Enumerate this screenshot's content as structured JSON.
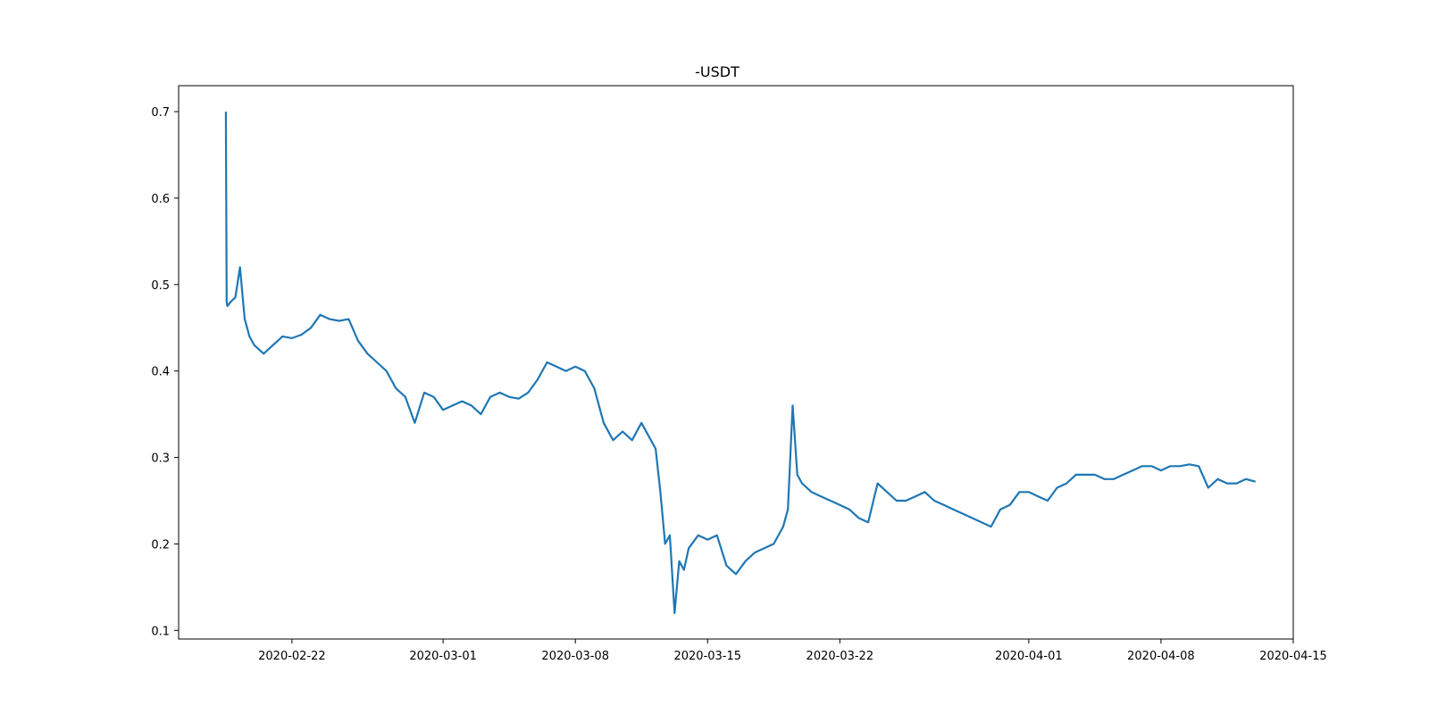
{
  "chart_data": {
    "type": "line",
    "title": "-USDT",
    "xlabel": "",
    "ylabel": "",
    "x_type": "date",
    "xlim": [
      "2020-02-16",
      "2020-04-15"
    ],
    "ylim": [
      0.09,
      0.73
    ],
    "x_ticks": [
      "2020-02-22",
      "2020-03-01",
      "2020-03-08",
      "2020-03-15",
      "2020-03-22",
      "2020-04-01",
      "2020-04-08",
      "2020-04-15"
    ],
    "y_ticks": [
      0.1,
      0.2,
      0.3,
      0.4,
      0.5,
      0.6,
      0.7
    ],
    "y_tick_labels": [
      "0.1",
      "0.2",
      "0.3",
      "0.4",
      "0.5",
      "0.6",
      "0.7"
    ],
    "grid": false,
    "line_color": "#1f77b4",
    "series": [
      {
        "x": [
          "2020-02-18 12:00",
          "2020-02-18 13:00",
          "2020-02-18 14:00",
          "2020-02-18 18:00",
          "2020-02-19 00:00",
          "2020-02-19 06:00",
          "2020-02-19 12:00",
          "2020-02-19 15:00",
          "2020-02-19 18:00",
          "2020-02-20 00:00",
          "2020-02-20 12:00",
          "2020-02-21 00:00",
          "2020-02-21 12:00",
          "2020-02-22 00:00",
          "2020-02-22 12:00",
          "2020-02-23 00:00",
          "2020-02-23 12:00",
          "2020-02-24 00:00",
          "2020-02-24 12:00",
          "2020-02-25 00:00",
          "2020-02-25 12:00",
          "2020-02-26 00:00",
          "2020-02-26 12:00",
          "2020-02-27 00:00",
          "2020-02-27 12:00",
          "2020-02-28 00:00",
          "2020-02-28 12:00",
          "2020-02-29 00:00",
          "2020-02-29 12:00",
          "2020-03-01 00:00",
          "2020-03-01 12:00",
          "2020-03-02 00:00",
          "2020-03-02 12:00",
          "2020-03-03 00:00",
          "2020-03-03 12:00",
          "2020-03-04 00:00",
          "2020-03-04 12:00",
          "2020-03-05 00:00",
          "2020-03-05 12:00",
          "2020-03-06 00:00",
          "2020-03-06 12:00",
          "2020-03-07 00:00",
          "2020-03-07 12:00",
          "2020-03-08 00:00",
          "2020-03-08 12:00",
          "2020-03-09 00:00",
          "2020-03-09 12:00",
          "2020-03-10 00:00",
          "2020-03-10 12:00",
          "2020-03-11 00:00",
          "2020-03-11 12:00",
          "2020-03-12 00:00",
          "2020-03-12 06:00",
          "2020-03-12 12:00",
          "2020-03-12 18:00",
          "2020-03-13 00:00",
          "2020-03-13 06:00",
          "2020-03-13 12:00",
          "2020-03-13 18:00",
          "2020-03-14 00:00",
          "2020-03-14 12:00",
          "2020-03-15 00:00",
          "2020-03-15 12:00",
          "2020-03-16 00:00",
          "2020-03-16 12:00",
          "2020-03-17 00:00",
          "2020-03-17 12:00",
          "2020-03-18 00:00",
          "2020-03-18 12:00",
          "2020-03-19 00:00",
          "2020-03-19 06:00",
          "2020-03-19 12:00",
          "2020-03-19 18:00",
          "2020-03-20 00:00",
          "2020-03-20 12:00",
          "2020-03-21 00:00",
          "2020-03-21 12:00",
          "2020-03-22 00:00",
          "2020-03-22 12:00",
          "2020-03-23 00:00",
          "2020-03-23 12:00",
          "2020-03-24 00:00",
          "2020-03-24 12:00",
          "2020-03-25 00:00",
          "2020-03-25 12:00",
          "2020-03-26 00:00",
          "2020-03-26 12:00",
          "2020-03-27 00:00",
          "2020-03-27 12:00",
          "2020-03-28 00:00",
          "2020-03-28 12:00",
          "2020-03-29 00:00",
          "2020-03-29 12:00",
          "2020-03-30 00:00",
          "2020-03-30 12:00",
          "2020-03-31 00:00",
          "2020-03-31 12:00",
          "2020-04-01 00:00",
          "2020-04-01 12:00",
          "2020-04-02 00:00",
          "2020-04-02 12:00",
          "2020-04-03 00:00",
          "2020-04-03 12:00",
          "2020-04-04 00:00",
          "2020-04-04 12:00",
          "2020-04-05 00:00",
          "2020-04-05 12:00",
          "2020-04-06 00:00",
          "2020-04-06 12:00",
          "2020-04-07 00:00",
          "2020-04-07 12:00",
          "2020-04-08 00:00",
          "2020-04-08 12:00",
          "2020-04-09 00:00",
          "2020-04-09 12:00",
          "2020-04-10 00:00",
          "2020-04-10 12:00",
          "2020-04-11 00:00",
          "2020-04-11 12:00",
          "2020-04-12 00:00",
          "2020-04-12 12:00",
          "2020-04-13 00:00"
        ],
        "y": [
          0.7,
          0.48,
          0.475,
          0.48,
          0.485,
          0.52,
          0.46,
          0.45,
          0.44,
          0.43,
          0.42,
          0.43,
          0.44,
          0.438,
          0.442,
          0.45,
          0.465,
          0.46,
          0.458,
          0.46,
          0.435,
          0.42,
          0.41,
          0.4,
          0.38,
          0.37,
          0.34,
          0.375,
          0.37,
          0.355,
          0.36,
          0.365,
          0.36,
          0.35,
          0.37,
          0.375,
          0.37,
          0.368,
          0.375,
          0.39,
          0.41,
          0.405,
          0.4,
          0.405,
          0.4,
          0.38,
          0.34,
          0.32,
          0.33,
          0.32,
          0.34,
          0.32,
          0.31,
          0.26,
          0.2,
          0.21,
          0.12,
          0.18,
          0.17,
          0.195,
          0.21,
          0.205,
          0.21,
          0.175,
          0.165,
          0.18,
          0.19,
          0.195,
          0.2,
          0.22,
          0.24,
          0.36,
          0.28,
          0.27,
          0.26,
          0.255,
          0.25,
          0.245,
          0.24,
          0.23,
          0.225,
          0.27,
          0.26,
          0.25,
          0.25,
          0.255,
          0.26,
          0.25,
          0.245,
          0.24,
          0.235,
          0.23,
          0.225,
          0.22,
          0.24,
          0.245,
          0.26,
          0.26,
          0.255,
          0.25,
          0.265,
          0.27,
          0.28,
          0.28,
          0.28,
          0.275,
          0.275,
          0.28,
          0.285,
          0.29,
          0.29,
          0.285,
          0.29,
          0.29,
          0.292,
          0.29,
          0.265,
          0.275,
          0.27,
          0.27,
          0.275,
          0.272
        ]
      }
    ]
  }
}
